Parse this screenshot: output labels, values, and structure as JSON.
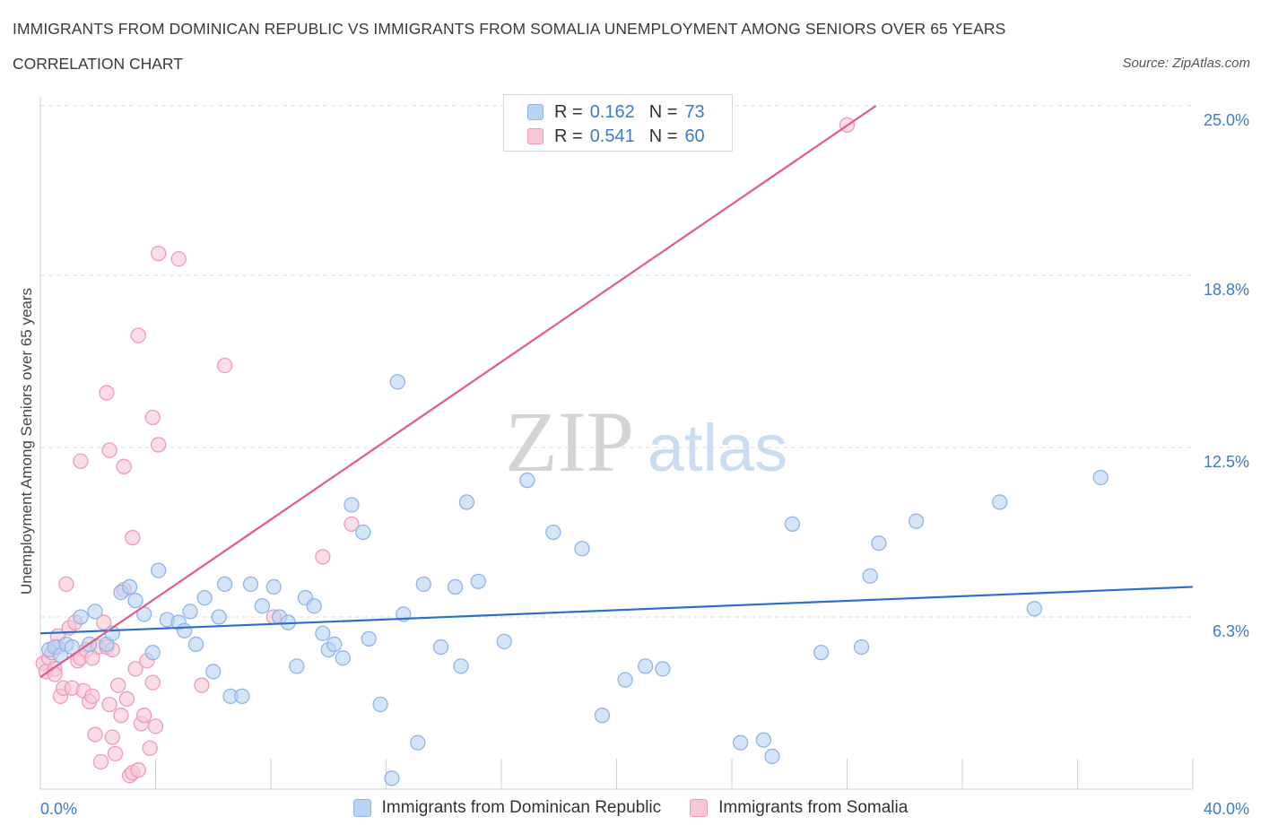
{
  "title": "IMMIGRANTS FROM DOMINICAN REPUBLIC VS IMMIGRANTS FROM SOMALIA UNEMPLOYMENT AMONG SENIORS OVER 65 YEARS",
  "subtitle": "CORRELATION CHART",
  "source": "Source: ZipAtlas.com",
  "watermark": {
    "zip": "ZIP",
    "atlas": "atlas"
  },
  "legend_top": {
    "rows": [
      {
        "r_label": "R =",
        "r_value": "0.162",
        "n_label": "N =",
        "n_value": "73"
      },
      {
        "r_label": "R =",
        "r_value": "0.541",
        "n_label": "N =",
        "n_value": "60"
      }
    ]
  },
  "colors": {
    "blue_fill": "#b9d3f3",
    "blue_stroke": "#8fb4e6",
    "blue_line": "#2a6fc9",
    "pink_fill": "#f9c6d6",
    "pink_stroke": "#f09ab6",
    "pink_line": "#e05a8a",
    "grid": "#dcdcdc",
    "tick_label": "#3d7ac8"
  },
  "chart_data": {
    "type": "scatter",
    "title": "IMMIGRANTS FROM DOMINICAN REPUBLIC VS IMMIGRANTS FROM SOMALIA UNEMPLOYMENT AMONG SENIORS OVER 65 YEARS",
    "xlabel": "",
    "ylabel": "Unemployment Among Seniors over 65 years",
    "xlim": [
      0,
      40
    ],
    "ylim": [
      0,
      25
    ],
    "x_tick_labels": [
      {
        "value": 0,
        "label": "0.0%"
      },
      {
        "value": 40,
        "label": "40.0%"
      }
    ],
    "y_tick_labels": [
      {
        "value": 6.3,
        "label": "6.3%"
      },
      {
        "value": 12.5,
        "label": "12.5%"
      },
      {
        "value": 18.8,
        "label": "18.8%"
      },
      {
        "value": 25.0,
        "label": "25.0%"
      }
    ],
    "series": [
      {
        "name": "Immigrants from Dominican Republic",
        "color": "blue",
        "trend": {
          "x": [
            0,
            40
          ],
          "y": [
            5.7,
            7.4
          ]
        },
        "points": [
          [
            0.3,
            5.1
          ],
          [
            0.5,
            5.2
          ],
          [
            0.7,
            4.9
          ],
          [
            0.9,
            5.3
          ],
          [
            1.1,
            5.2
          ],
          [
            1.4,
            6.3
          ],
          [
            1.7,
            5.3
          ],
          [
            1.9,
            6.5
          ],
          [
            2.3,
            5.3
          ],
          [
            2.5,
            5.7
          ],
          [
            2.8,
            7.2
          ],
          [
            3.1,
            7.4
          ],
          [
            3.3,
            6.9
          ],
          [
            3.6,
            6.4
          ],
          [
            3.9,
            5.0
          ],
          [
            4.1,
            8.0
          ],
          [
            4.4,
            6.2
          ],
          [
            4.8,
            6.1
          ],
          [
            5.0,
            5.8
          ],
          [
            5.2,
            6.5
          ],
          [
            5.4,
            5.3
          ],
          [
            5.7,
            7.0
          ],
          [
            6.0,
            4.3
          ],
          [
            6.2,
            6.3
          ],
          [
            6.4,
            7.5
          ],
          [
            6.6,
            3.4
          ],
          [
            7.0,
            3.4
          ],
          [
            7.3,
            7.5
          ],
          [
            7.7,
            6.7
          ],
          [
            8.1,
            7.4
          ],
          [
            8.3,
            6.3
          ],
          [
            8.6,
            6.1
          ],
          [
            8.9,
            4.5
          ],
          [
            9.2,
            7.0
          ],
          [
            9.5,
            6.7
          ],
          [
            9.8,
            5.7
          ],
          [
            10.0,
            5.1
          ],
          [
            10.2,
            5.3
          ],
          [
            10.5,
            4.8
          ],
          [
            10.8,
            10.4
          ],
          [
            11.2,
            9.4
          ],
          [
            11.4,
            5.5
          ],
          [
            11.8,
            3.1
          ],
          [
            12.2,
            0.4
          ],
          [
            12.4,
            14.9
          ],
          [
            12.6,
            6.4
          ],
          [
            13.1,
            1.7
          ],
          [
            13.3,
            7.5
          ],
          [
            13.9,
            5.2
          ],
          [
            14.4,
            7.4
          ],
          [
            14.6,
            4.5
          ],
          [
            14.8,
            10.5
          ],
          [
            15.2,
            7.6
          ],
          [
            16.1,
            5.4
          ],
          [
            16.9,
            11.3
          ],
          [
            17.8,
            9.4
          ],
          [
            18.8,
            8.8
          ],
          [
            19.5,
            2.7
          ],
          [
            20.3,
            4.0
          ],
          [
            21.0,
            4.5
          ],
          [
            21.6,
            4.4
          ],
          [
            24.3,
            1.7
          ],
          [
            25.1,
            1.8
          ],
          [
            25.4,
            1.2
          ],
          [
            26.1,
            9.7
          ],
          [
            27.1,
            5.0
          ],
          [
            28.5,
            5.2
          ],
          [
            28.8,
            7.8
          ],
          [
            29.1,
            9.0
          ],
          [
            30.4,
            9.8
          ],
          [
            33.3,
            10.5
          ],
          [
            34.5,
            6.6
          ],
          [
            36.8,
            11.4
          ]
        ]
      },
      {
        "name": "Immigrants from Somalia",
        "color": "pink",
        "trend": {
          "x": [
            0,
            29.0
          ],
          "y": [
            4.1,
            25.0
          ]
        },
        "points": [
          [
            0.1,
            4.6
          ],
          [
            0.2,
            4.3
          ],
          [
            0.3,
            4.8
          ],
          [
            0.4,
            5.0
          ],
          [
            0.5,
            4.4
          ],
          [
            0.6,
            5.6
          ],
          [
            0.7,
            3.4
          ],
          [
            0.8,
            3.7
          ],
          [
            0.9,
            7.5
          ],
          [
            1.0,
            5.9
          ],
          [
            1.1,
            3.7
          ],
          [
            1.2,
            6.1
          ],
          [
            1.3,
            4.7
          ],
          [
            1.4,
            4.8
          ],
          [
            1.5,
            3.6
          ],
          [
            1.6,
            5.1
          ],
          [
            1.7,
            3.2
          ],
          [
            1.8,
            3.4
          ],
          [
            1.9,
            2.0
          ],
          [
            2.0,
            5.2
          ],
          [
            2.1,
            1.0
          ],
          [
            2.2,
            6.1
          ],
          [
            2.3,
            5.2
          ],
          [
            2.4,
            3.1
          ],
          [
            2.5,
            1.9
          ],
          [
            2.6,
            1.3
          ],
          [
            2.7,
            3.8
          ],
          [
            2.8,
            2.7
          ],
          [
            2.9,
            7.3
          ],
          [
            3.0,
            3.3
          ],
          [
            3.1,
            0.5
          ],
          [
            3.2,
            0.6
          ],
          [
            3.3,
            4.4
          ],
          [
            3.4,
            0.7
          ],
          [
            3.5,
            2.4
          ],
          [
            3.6,
            2.7
          ],
          [
            3.7,
            4.7
          ],
          [
            3.8,
            1.5
          ],
          [
            3.9,
            3.9
          ],
          [
            4.0,
            2.3
          ],
          [
            1.4,
            12.0
          ],
          [
            2.3,
            14.5
          ],
          [
            2.4,
            12.4
          ],
          [
            2.9,
            11.8
          ],
          [
            3.2,
            9.2
          ],
          [
            3.4,
            16.6
          ],
          [
            3.9,
            13.6
          ],
          [
            4.1,
            19.6
          ],
          [
            4.1,
            12.6
          ],
          [
            4.8,
            19.4
          ],
          [
            5.6,
            3.8
          ],
          [
            6.4,
            15.5
          ],
          [
            8.1,
            6.3
          ],
          [
            9.8,
            8.5
          ],
          [
            10.8,
            9.7
          ],
          [
            28.0,
            24.3
          ],
          [
            0.5,
            4.2
          ],
          [
            0.6,
            5.2
          ],
          [
            1.8,
            4.8
          ],
          [
            2.5,
            5.1
          ]
        ]
      }
    ]
  },
  "bottom_legend": [
    {
      "label": "Immigrants from Dominican Republic",
      "color": "blue"
    },
    {
      "label": "Immigrants from Somalia",
      "color": "pink"
    }
  ]
}
